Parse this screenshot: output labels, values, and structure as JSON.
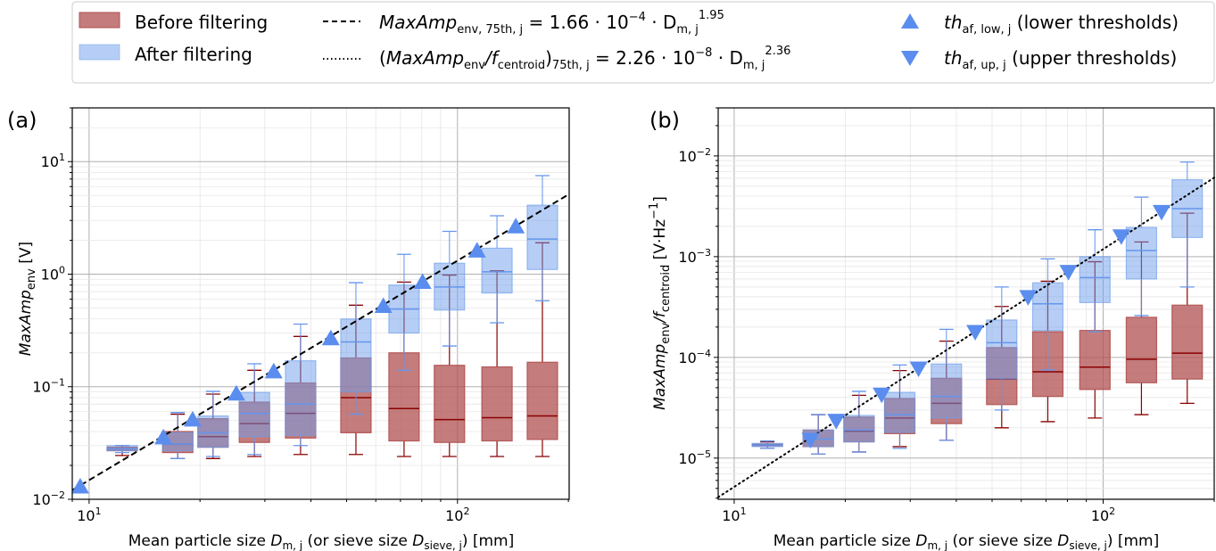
{
  "legend": {
    "before_label": "Before filtering",
    "after_label": "After filtering",
    "fit_a_label": {
      "lhs_main": "MaxAmp",
      "lhs_sub": "env, 75th, j",
      "rhs": " =  1.66 · 10",
      "rhs_exp": "−4",
      "rhs_mid": " · D",
      "rhs_sub": "m, j",
      "rhs_pow": "1.95"
    },
    "fit_b_label": {
      "lhs_open": "(",
      "lhs_main": "MaxAmp",
      "lhs_sub1": "env",
      "lhs_slash": "/f",
      "lhs_sub2": "centroid",
      "lhs_close": ")",
      "lhs_sub3": "75th, j",
      "rhs": " =  2.26 · 10",
      "rhs_exp": "−8",
      "rhs_mid": " · D",
      "rhs_sub": "m, j",
      "rhs_pow": "2.36"
    },
    "low_label": {
      "main": "th",
      "sub": "af, low, j",
      "tail": " (lower thresholds)"
    },
    "up_label": {
      "main": "th",
      "sub": "af, up, j",
      "tail": " (upper thresholds)"
    }
  },
  "colors": {
    "before_fill": "#b05050",
    "before_edge": "#8b0000",
    "after_fill": "#6d9eeb",
    "after_edge": "#6495ed",
    "threshold": "#5b8def",
    "grid_major": "#b0b0b0",
    "grid_minor": "#e6e6e6"
  },
  "chart_data": [
    {
      "type": "box",
      "panel_label": "(a)",
      "xlabel": "Mean particle size D_m,j (or sieve size D_sieve,j) [mm]",
      "xlabel_parts": {
        "pre": "Mean particle size ",
        "d1": "D",
        "s1": "m, j",
        "mid": " (or sieve size ",
        "d2": "D",
        "s2": "sieve, j",
        "post": ") [mm]"
      },
      "ylabel": "MaxAmp_env [V]",
      "ylabel_parts": {
        "main": "MaxAmp",
        "sub": "env",
        "unit": "  [V]"
      },
      "xscale": "log",
      "yscale": "log",
      "xlim": [
        9.0,
        201
      ],
      "ylim": [
        0.01,
        30
      ],
      "x_ticks": [
        {
          "value": 10,
          "base": "10",
          "exp": "1"
        },
        {
          "value": 100,
          "base": "10",
          "exp": "2"
        }
      ],
      "y_ticks": [
        {
          "value": 0.01,
          "base": "10",
          "exp": "−2"
        },
        {
          "value": 0.1,
          "base": "10",
          "exp": "−1"
        },
        {
          "value": 1,
          "base": "10",
          "exp": "0"
        },
        {
          "value": 10,
          "base": "10",
          "exp": "1"
        }
      ],
      "grid": true,
      "fit_line": {
        "style": "dashed",
        "coef": 0.000166,
        "exponent": 1.95
      },
      "threshold_marker": "triangle-up",
      "thresholds": [
        {
          "x": 9.46,
          "y": 0.0129
        },
        {
          "x": 15.9,
          "y": 0.0353
        },
        {
          "x": 19.1,
          "y": 0.0508
        },
        {
          "x": 25.1,
          "y": 0.0865
        },
        {
          "x": 31.7,
          "y": 0.136
        },
        {
          "x": 45.3,
          "y": 0.268
        },
        {
          "x": 62.9,
          "y": 0.518
        },
        {
          "x": 80.4,
          "y": 0.849
        },
        {
          "x": 113,
          "y": 1.61
        },
        {
          "x": 144,
          "y": 2.64
        }
      ],
      "boxes": [
        {
          "x": 12.3,
          "before": {
            "lo": 0.0245,
            "q1": 0.027,
            "med": 0.028,
            "q3": 0.029,
            "hi": 0.03
          },
          "after": {
            "lo": 0.026,
            "q1": 0.027,
            "med": 0.028,
            "q3": 0.03,
            "hi": 0.03
          }
        },
        {
          "x": 17.4,
          "before": {
            "lo": 0.023,
            "q1": 0.026,
            "med": 0.031,
            "q3": 0.04,
            "hi": 0.057
          },
          "after": {
            "lo": 0.023,
            "q1": 0.027,
            "med": 0.031,
            "q3": 0.039,
            "hi": 0.059
          }
        },
        {
          "x": 21.7,
          "before": {
            "lo": 0.023,
            "q1": 0.029,
            "med": 0.036,
            "q3": 0.052,
            "hi": 0.086
          },
          "after": {
            "lo": 0.024,
            "q1": 0.029,
            "med": 0.039,
            "q3": 0.055,
            "hi": 0.091
          }
        },
        {
          "x": 28.1,
          "before": {
            "lo": 0.024,
            "q1": 0.032,
            "med": 0.047,
            "q3": 0.073,
            "hi": 0.14
          },
          "after": {
            "lo": 0.025,
            "q1": 0.036,
            "med": 0.058,
            "q3": 0.089,
            "hi": 0.16
          }
        },
        {
          "x": 37.5,
          "before": {
            "lo": 0.025,
            "q1": 0.035,
            "med": 0.058,
            "q3": 0.108,
            "hi": 0.28
          },
          "after": {
            "lo": 0.03,
            "q1": 0.037,
            "med": 0.07,
            "q3": 0.17,
            "hi": 0.36
          }
        },
        {
          "x": 53,
          "before": {
            "lo": 0.025,
            "q1": 0.039,
            "med": 0.08,
            "q3": 0.18,
            "hi": 0.53
          },
          "after": {
            "lo": 0.057,
            "q1": 0.09,
            "med": 0.25,
            "q3": 0.4,
            "hi": 0.84
          }
        },
        {
          "x": 71.6,
          "before": {
            "lo": 0.024,
            "q1": 0.033,
            "med": 0.064,
            "q3": 0.2,
            "hi": 0.85
          },
          "after": {
            "lo": 0.14,
            "q1": 0.3,
            "med": 0.49,
            "q3": 0.8,
            "hi": 1.5
          }
        },
        {
          "x": 95.1,
          "before": {
            "lo": 0.024,
            "q1": 0.032,
            "med": 0.051,
            "q3": 0.155,
            "hi": 0.98
          },
          "after": {
            "lo": 0.23,
            "q1": 0.48,
            "med": 0.77,
            "q3": 1.25,
            "hi": 2.4
          }
        },
        {
          "x": 128,
          "before": {
            "lo": 0.024,
            "q1": 0.033,
            "med": 0.053,
            "q3": 0.15,
            "hi": 1.07
          },
          "after": {
            "lo": 0.37,
            "q1": 0.68,
            "med": 1.05,
            "q3": 1.7,
            "hi": 3.3
          }
        },
        {
          "x": 170,
          "before": {
            "lo": 0.024,
            "q1": 0.034,
            "med": 0.055,
            "q3": 0.165,
            "hi": 1.9
          },
          "after": {
            "lo": 0.58,
            "q1": 1.1,
            "med": 2.05,
            "q3": 4.1,
            "hi": 7.5
          }
        }
      ]
    },
    {
      "type": "box",
      "panel_label": "(b)",
      "xlabel": "Mean particle size D_m,j (or sieve size  D_sieve,j) [mm]",
      "xlabel_parts": {
        "pre": "Mean particle size ",
        "d1": "D",
        "s1": "m, j",
        "mid": " (or sieve size  ",
        "d2": "D",
        "s2": "sieve, j",
        "post": ") [mm]"
      },
      "ylabel": "MaxAmp_env/f_centroid [V·Hz^-1]",
      "ylabel_parts": {
        "main": "MaxAmp",
        "sub": "env",
        "slash": "/f",
        "sub2": "centroid",
        "unit": "  [V·Hz",
        "unit_exp": "−1",
        "unit_close": "]"
      },
      "xscale": "log",
      "yscale": "log",
      "xlim": [
        9.05,
        200
      ],
      "ylim": [
        3.9e-06,
        0.03
      ],
      "x_ticks": [
        {
          "value": 10,
          "base": "10",
          "exp": "1"
        },
        {
          "value": 100,
          "base": "10",
          "exp": "2"
        }
      ],
      "y_ticks": [
        {
          "value": 1e-05,
          "base": "10",
          "exp": "−5"
        },
        {
          "value": 0.0001,
          "base": "10",
          "exp": "−4"
        },
        {
          "value": 0.001,
          "base": "10",
          "exp": "−3"
        },
        {
          "value": 0.01,
          "base": "10",
          "exp": "−2"
        }
      ],
      "grid": true,
      "fit_line": {
        "style": "dotted",
        "coef": 2.26e-08,
        "exponent": 2.36
      },
      "threshold_marker": "triangle-down",
      "thresholds": [
        {
          "x": 16.1,
          "y": 1.53e-05
        },
        {
          "x": 18.9,
          "y": 2.36e-05
        },
        {
          "x": 25.1,
          "y": 4.3e-05
        },
        {
          "x": 31.6,
          "y": 7.8e-05
        },
        {
          "x": 45,
          "y": 0.00018
        },
        {
          "x": 62.6,
          "y": 0.0004
        },
        {
          "x": 80.5,
          "y": 0.00071
        },
        {
          "x": 112,
          "y": 0.0016
        },
        {
          "x": 144,
          "y": 0.0028
        }
      ],
      "boxes": [
        {
          "x": 12.3,
          "before": {
            "lo": 1.25e-05,
            "q1": 1.32e-05,
            "med": 1.35e-05,
            "q3": 1.38e-05,
            "hi": 1.45e-05
          },
          "after": {
            "lo": 1.25e-05,
            "q1": 1.3e-05,
            "med": 1.35e-05,
            "q3": 1.4e-05,
            "hi": 1.48e-05
          }
        },
        {
          "x": 16.9,
          "before": {
            "lo": 1.1e-05,
            "q1": 1.3e-05,
            "med": 1.55e-05,
            "q3": 1.9e-05,
            "hi": 2.7e-05
          },
          "after": {
            "lo": 1.1e-05,
            "q1": 1.3e-05,
            "med": 1.55e-05,
            "q3": 1.9e-05,
            "hi": 2.7e-05
          }
        },
        {
          "x": 21.8,
          "before": {
            "lo": 1.15e-05,
            "q1": 1.45e-05,
            "med": 1.85e-05,
            "q3": 2.55e-05,
            "hi": 4.2e-05
          },
          "after": {
            "lo": 1.15e-05,
            "q1": 1.45e-05,
            "med": 1.9e-05,
            "q3": 2.65e-05,
            "hi": 4.6e-05
          }
        },
        {
          "x": 28.1,
          "before": {
            "lo": 1.3e-05,
            "q1": 1.75e-05,
            "med": 2.5e-05,
            "q3": 3.9e-05,
            "hi": 7.4e-05
          },
          "after": {
            "lo": 1.25e-05,
            "q1": 1.8e-05,
            "med": 2.7e-05,
            "q3": 4.5e-05,
            "hi": 8.4e-05
          }
        },
        {
          "x": 37.6,
          "before": {
            "lo": 1.5e-05,
            "q1": 2.2e-05,
            "med": 3.5e-05,
            "q3": 6.2e-05,
            "hi": 0.000145
          },
          "after": {
            "lo": 1.5e-05,
            "q1": 2.5e-05,
            "med": 4.1e-05,
            "q3": 8.6e-05,
            "hi": 0.00019
          }
        },
        {
          "x": 53.1,
          "before": {
            "lo": 2e-05,
            "q1": 3.4e-05,
            "med": 6.1e-05,
            "q3": 0.000125,
            "hi": 0.00032
          },
          "after": {
            "lo": 3e-05,
            "q1": 6.1e-05,
            "med": 0.00014,
            "q3": 0.000235,
            "hi": 0.0005
          }
        },
        {
          "x": 70.8,
          "before": {
            "lo": 2.3e-05,
            "q1": 4.1e-05,
            "med": 7.2e-05,
            "q3": 0.00018,
            "hi": 0.00057
          },
          "after": {
            "lo": 7.5e-05,
            "q1": 0.000185,
            "med": 0.00034,
            "q3": 0.00055,
            "hi": 0.00095
          }
        },
        {
          "x": 95,
          "before": {
            "lo": 2.5e-05,
            "q1": 4.8e-05,
            "med": 8e-05,
            "q3": 0.000185,
            "hi": 0.00089
          },
          "after": {
            "lo": 0.00018,
            "q1": 0.00035,
            "med": 0.00062,
            "q3": 0.001,
            "hi": 0.00185
          }
        },
        {
          "x": 127,
          "before": {
            "lo": 2.7e-05,
            "q1": 5.6e-05,
            "med": 9.6e-05,
            "q3": 0.00025,
            "hi": 0.0014
          },
          "after": {
            "lo": 0.00026,
            "q1": 0.0006,
            "med": 0.00115,
            "q3": 0.00195,
            "hi": 0.0039
          }
        },
        {
          "x": 169,
          "before": {
            "lo": 3.5e-05,
            "q1": 6.1e-05,
            "med": 0.00011,
            "q3": 0.00033,
            "hi": 0.0027
          },
          "after": {
            "lo": 0.0005,
            "q1": 0.00155,
            "med": 0.003,
            "q3": 0.0058,
            "hi": 0.0087
          }
        }
      ]
    }
  ]
}
